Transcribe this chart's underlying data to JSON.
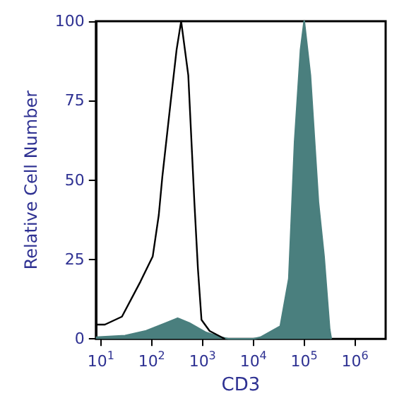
{
  "chart_data": {
    "type": "line",
    "xlabel": "CD3",
    "ylabel": "Relative Cell Number",
    "log": "x",
    "xlim": [
      8,
      4000000
    ],
    "ylim": [
      0,
      100
    ],
    "xticks": [
      {
        "value": 10,
        "label": "10$^{1}$"
      },
      {
        "value": 100,
        "label": "10$^{2}$"
      },
      {
        "value": 1000,
        "label": "10$^{3}$"
      },
      {
        "value": 10000,
        "label": "10$^{4}$"
      },
      {
        "value": 100000,
        "label": "10$^{5}$"
      },
      {
        "value": 1000000,
        "label": "10$^{6}$"
      }
    ],
    "yticks": [
      0,
      25,
      50,
      75,
      100
    ],
    "grid": false,
    "marker": "none",
    "line_style": "solid",
    "series": [
      {
        "type": "line",
        "color": "#000000",
        "x": [
          8,
          12,
          26,
          60,
          105,
          138,
          162,
          234,
          309,
          380,
          525,
          692,
          813,
          955,
          1380,
          2750
        ],
        "values": [
          4.5,
          4.5,
          7,
          18,
          26,
          39,
          51,
          74,
          91,
          100,
          83,
          43,
          22,
          6,
          2.5,
          0
        ]
      },
      {
        "type": "area",
        "color": "#4a7f7e",
        "x": [
          8,
          30,
          78,
          190,
          324,
          550,
          1175,
          2340,
          3200,
          10000,
          13800,
          34000,
          50000,
          59000,
          65000,
          85000,
          100000,
          132000,
          190000,
          245000,
          316000,
          340000
        ],
        "values": [
          0.5,
          1,
          2.5,
          5,
          6.5,
          5,
          2,
          0.5,
          0,
          0,
          0.5,
          4,
          19,
          46,
          62,
          91,
          100,
          83,
          43,
          26,
          3,
          0
        ]
      }
    ]
  }
}
